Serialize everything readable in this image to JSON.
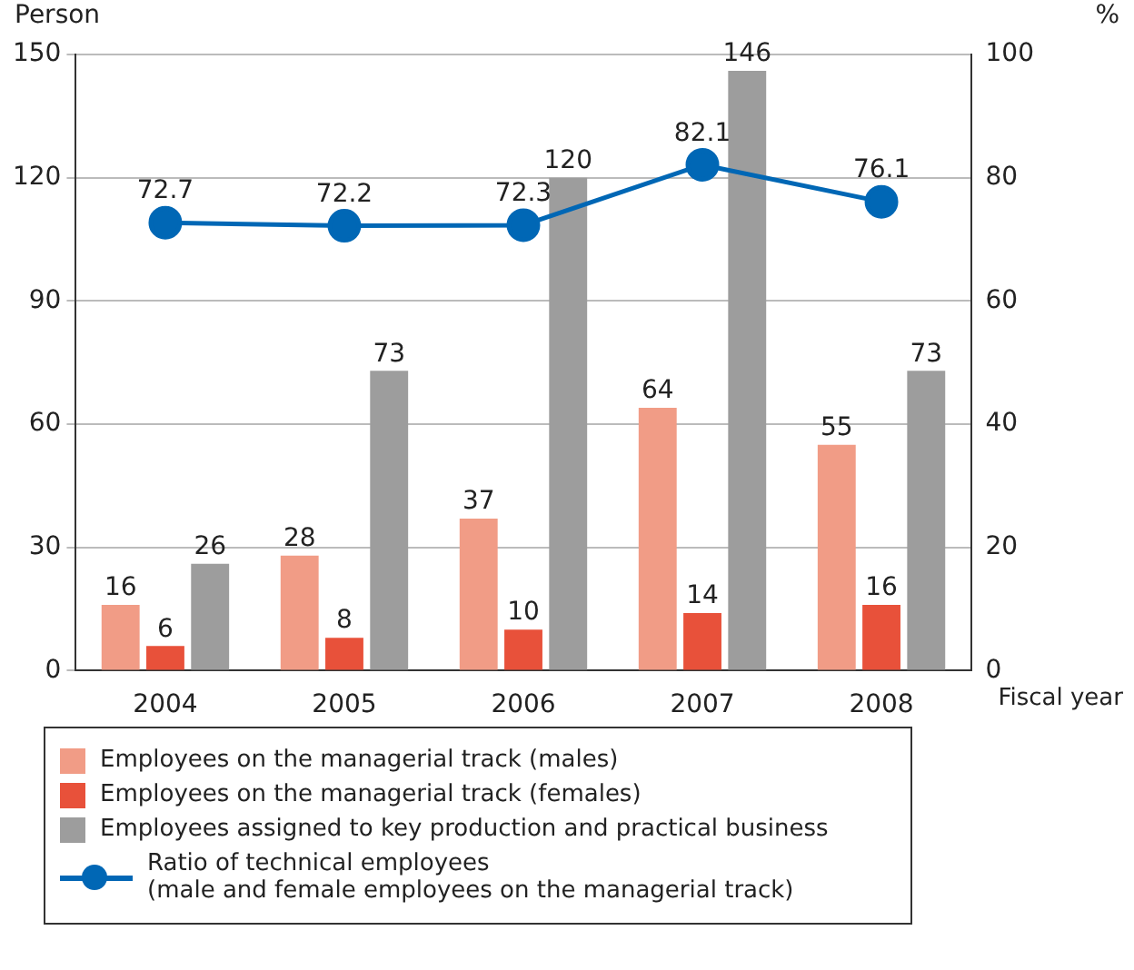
{
  "chart_data": {
    "type": "bar",
    "ylabel": "Person",
    "y2label": "%",
    "xlabel": "Fiscal year",
    "categories": [
      "2004",
      "2005",
      "2006",
      "2007",
      "2008"
    ],
    "series": [
      {
        "name": "Employees on the managerial track (males)",
        "color": "#f19c86",
        "values": [
          16,
          28,
          37,
          64,
          55
        ]
      },
      {
        "name": "Employees on the managerial track (females)",
        "color": "#e8513a",
        "values": [
          6,
          8,
          10,
          14,
          16
        ]
      },
      {
        "name": "Employees assigned to key production and practical business",
        "color": "#9d9d9d",
        "values": [
          26,
          73,
          120,
          146,
          73
        ]
      },
      {
        "name": "Ratio of technical employees\n(male and female employees on the managerial track)",
        "type": "line",
        "axis": "y2",
        "color": "#0067b5",
        "values": [
          72.7,
          72.2,
          72.3,
          82.1,
          76.1
        ]
      }
    ],
    "ylim": [
      0,
      150
    ],
    "yticks": [
      0,
      30,
      60,
      90,
      120,
      150
    ],
    "y2lim": [
      0,
      100
    ],
    "y2ticks": [
      0,
      20,
      40,
      60,
      80,
      100
    ],
    "grid": "y",
    "legend": "bottom",
    "marker": "circle",
    "line_style": "solid",
    "data_labels": true
  }
}
